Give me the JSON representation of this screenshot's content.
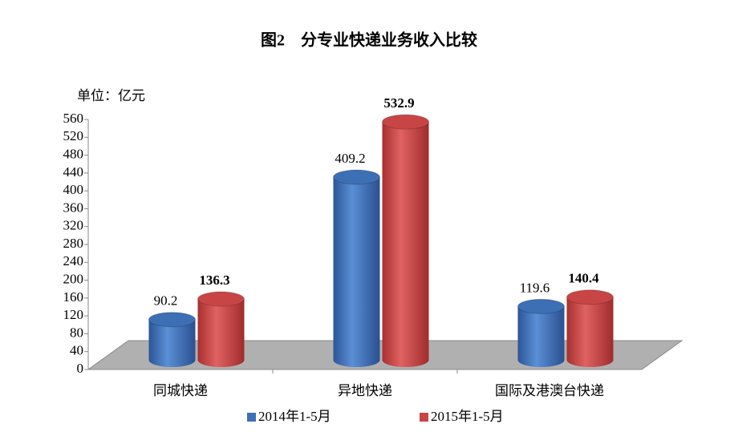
{
  "chart_data": {
    "type": "bar",
    "title": "图2　分专业快递业务收入比较",
    "unit_label": "单位：亿元",
    "categories": [
      "同城快递",
      "异地快递",
      "国际及港澳台快递"
    ],
    "series": [
      {
        "name": "2014年1-5月",
        "color": "#3d6fb5",
        "values": [
          90.2,
          409.2,
          119.6
        ]
      },
      {
        "name": "2015年1-5月",
        "color": "#c84545",
        "values": [
          136.3,
          532.9,
          140.4
        ]
      }
    ],
    "ylim": [
      0,
      560
    ],
    "yticks": [
      0,
      40,
      80,
      120,
      160,
      200,
      240,
      280,
      320,
      360,
      400,
      440,
      480,
      520,
      560
    ],
    "legend": "bottom"
  }
}
